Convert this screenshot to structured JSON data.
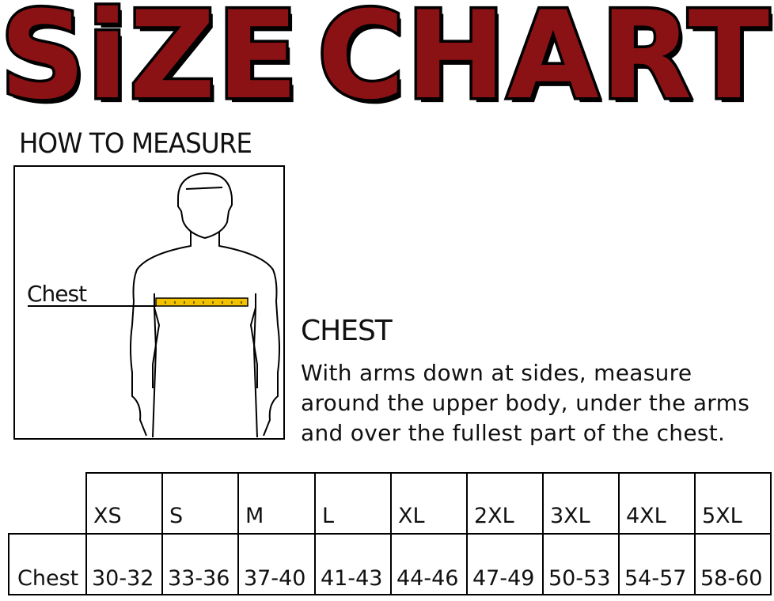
{
  "title": "SIZE CHART",
  "title_words": [
    "SiZE",
    "CHART"
  ],
  "how_to_measure": "HOW TO MEASURE",
  "figure": {
    "label": "Chest",
    "tape_color": "#f2c200"
  },
  "measure": {
    "heading": "CHEST",
    "description_lines": [
      "With arms down at sides, measure",
      "around the upper body, under the arms",
      "and over the fullest part of the chest."
    ]
  },
  "table": {
    "sizes": [
      "XS",
      "S",
      "M",
      "L",
      "XL",
      "2XL",
      "3XL",
      "4XL",
      "5XL"
    ],
    "row_label": "Chest",
    "values": [
      "30-32",
      "33-36",
      "37-40",
      "41-43",
      "44-46",
      "47-49",
      "50-53",
      "54-57",
      "58-60"
    ]
  },
  "colors": {
    "title_fill": "#8b1214",
    "outline": "#000000"
  }
}
